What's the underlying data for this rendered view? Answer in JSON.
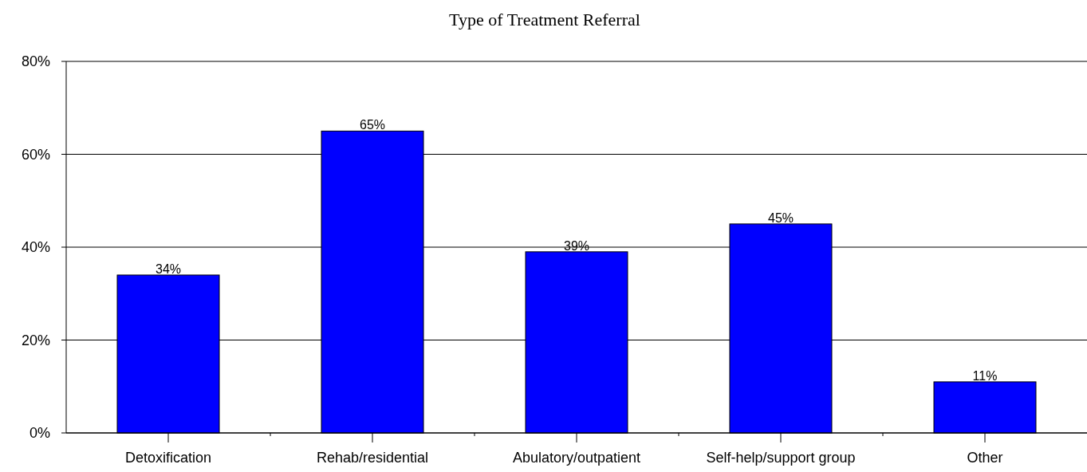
{
  "chart_data": {
    "type": "bar",
    "title": "Type of Treatment Referral",
    "categories": [
      "Detoxification",
      "Rehab/residential",
      "Abulatory/outpatient",
      "Self-help/support group",
      "Other"
    ],
    "values": [
      34,
      65,
      39,
      45,
      11
    ],
    "value_labels": [
      "34%",
      "65%",
      "39%",
      "45%",
      "11%"
    ],
    "color": "#0000ff",
    "ylim": [
      0,
      80
    ],
    "yticks": [
      {
        "value": 0,
        "label": "0%"
      },
      {
        "value": 20,
        "label": "20%"
      },
      {
        "value": 40,
        "label": "40%"
      },
      {
        "value": 60,
        "label": "60%"
      },
      {
        "value": 80,
        "label": "80%"
      }
    ],
    "grid": "y"
  }
}
